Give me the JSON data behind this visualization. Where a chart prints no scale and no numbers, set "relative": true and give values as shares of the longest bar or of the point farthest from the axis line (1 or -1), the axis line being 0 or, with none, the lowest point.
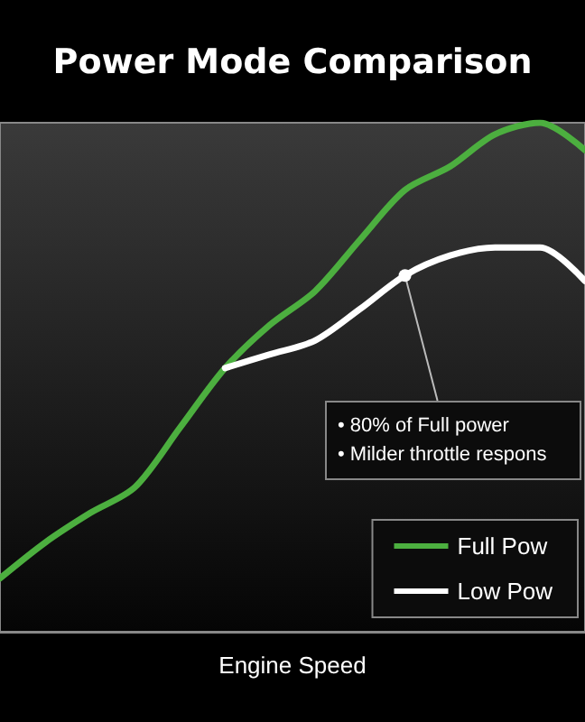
{
  "chart_data": {
    "type": "line",
    "title": "Power Mode Comparison",
    "xlabel": "Engine Speed",
    "relative": true,
    "legend": "bottom right",
    "categories": [
      null,
      null,
      null,
      null,
      null,
      null,
      null,
      null,
      null,
      null,
      null,
      null,
      null,
      null
    ],
    "series": [
      {
        "name": "Full Pow",
        "color": "#4caf3f",
        "values": [
          0.105,
          0.175,
          0.233,
          0.284,
          0.401,
          0.518,
          0.603,
          0.669,
          0.77,
          0.868,
          0.914,
          0.977,
          1,
          0.946
        ]
      },
      {
        "name": "Low Pow",
        "color": "#ffffff",
        "values": [
          null,
          null,
          null,
          null,
          null,
          0.518,
          0.545,
          0.572,
          0.634,
          0.7,
          0.739,
          0.755,
          0.755,
          0.689
        ]
      }
    ],
    "annotations": [
      "• 80% of Full power",
      "• Milder throttle respons"
    ]
  }
}
